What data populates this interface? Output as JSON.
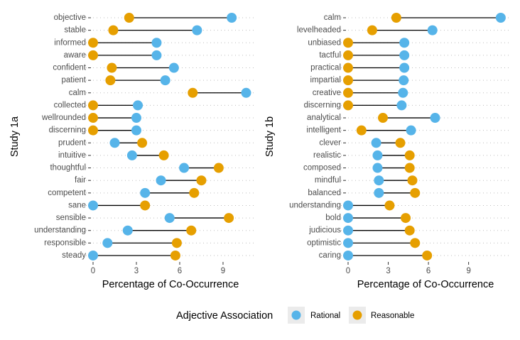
{
  "legend": {
    "title": "Adjective Association",
    "items": [
      {
        "label": "Rational",
        "color": "#56B4E9"
      },
      {
        "label": "Reasonable",
        "color": "#E69F00"
      }
    ]
  },
  "chart_data": [
    {
      "type": "dumbbell",
      "title": "",
      "ylabel": "Study 1a",
      "xlabel": "Percentage of Co-Occurrence",
      "xlim": [
        0,
        10.8
      ],
      "xticks": [
        0,
        3,
        6,
        9
      ],
      "grid": "horizontal dotted",
      "categories": [
        "objective",
        "stable",
        "informed",
        "aware",
        "confident",
        "patient",
        "calm",
        "collected",
        "wellrounded",
        "discerning",
        "prudent",
        "intuitive",
        "thoughtful",
        "fair",
        "competent",
        "sane",
        "sensible",
        "understanding",
        "responsible",
        "steady"
      ],
      "series": [
        {
          "name": "Rational",
          "color": "#56B4E9",
          "values": [
            9.6,
            7.2,
            4.4,
            4.4,
            5.6,
            5.0,
            10.6,
            3.1,
            3.0,
            3.0,
            1.5,
            2.7,
            6.3,
            4.7,
            3.6,
            0.0,
            5.3,
            2.4,
            1.0,
            0.0
          ]
        },
        {
          "name": "Reasonable",
          "color": "#E69F00",
          "values": [
            2.5,
            1.4,
            0.0,
            0.0,
            1.3,
            1.2,
            6.9,
            0.0,
            0.0,
            0.0,
            3.4,
            4.9,
            8.7,
            7.5,
            7.0,
            3.6,
            9.4,
            6.8,
            5.8,
            5.7
          ]
        }
      ]
    },
    {
      "type": "dumbbell",
      "title": "",
      "ylabel": "Study 1b",
      "xlabel": "Percentage of Co-Occurrence",
      "xlim": [
        0,
        11.8
      ],
      "xticks": [
        0,
        3,
        6,
        9
      ],
      "grid": "horizontal dotted",
      "categories": [
        "calm",
        "levelheaded",
        "unbiased",
        "tactful",
        "practical",
        "impartial",
        "creative",
        "discerning",
        "analytical",
        "intelligent",
        "clever",
        "realistic",
        "composed",
        "mindful",
        "balanced",
        "understanding",
        "bold",
        "judicious",
        "optimistic",
        "caring"
      ],
      "series": [
        {
          "name": "Rational",
          "color": "#56B4E9",
          "values": [
            11.4,
            6.3,
            4.2,
            4.2,
            4.2,
            4.15,
            4.1,
            4.0,
            6.5,
            4.7,
            2.1,
            2.2,
            2.2,
            2.3,
            2.3,
            0.0,
            0.0,
            0.0,
            0.0,
            0.0
          ]
        },
        {
          "name": "Reasonable",
          "color": "#E69F00",
          "values": [
            3.6,
            1.8,
            0.0,
            0.0,
            0.0,
            0.0,
            0.0,
            0.0,
            2.6,
            1.0,
            3.9,
            4.6,
            4.6,
            4.8,
            5.0,
            3.1,
            4.3,
            4.6,
            5.0,
            5.9
          ]
        }
      ]
    }
  ]
}
